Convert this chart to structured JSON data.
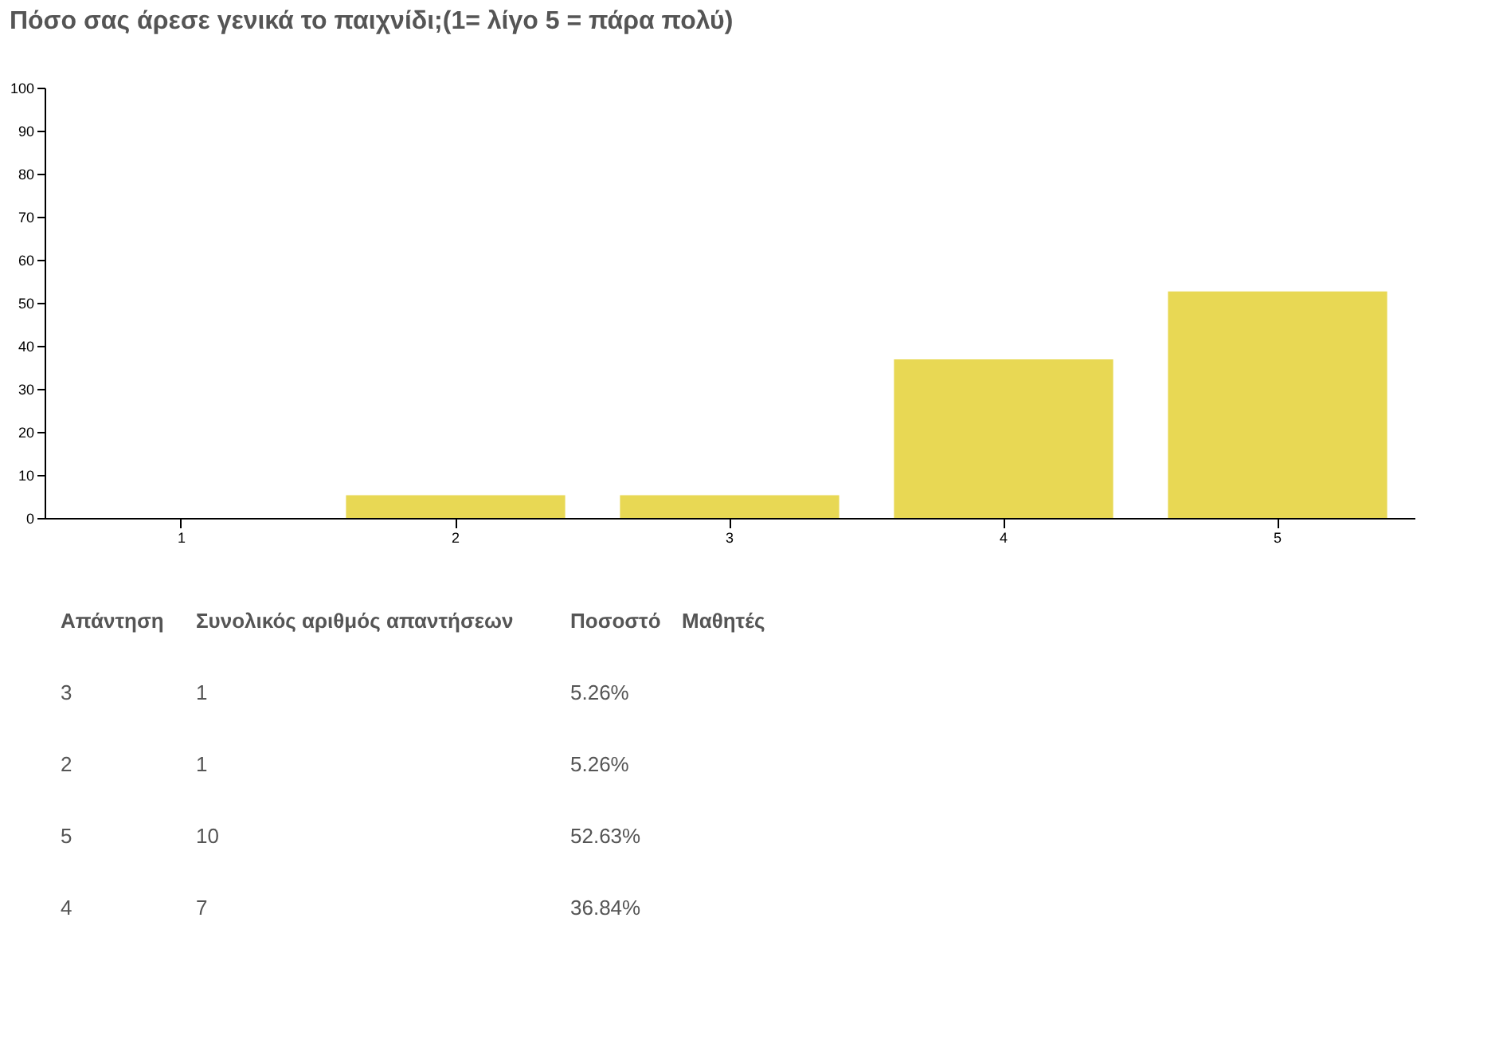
{
  "chart_data": [
    {
      "type": "bar",
      "title": "Πόσο σας άρεσε γενικά το παιχνίδι;(1= λίγο 5 = πάρα πολύ)",
      "categories": [
        "1",
        "2",
        "3",
        "4",
        "5"
      ],
      "values": [
        0,
        5.26,
        5.26,
        36.84,
        52.63
      ],
      "color": "#e8d854",
      "ylim": [
        0,
        100
      ],
      "yticks": [
        0,
        10,
        20,
        30,
        40,
        50,
        60,
        70,
        80,
        90,
        100
      ]
    },
    {
      "type": "other",
      "annotations": [
        "Απάντηση",
        "Συνολικός αριθμός απαντήσεων",
        "Ποσοστό",
        "Μαθητές",
        "3",
        "1",
        "5.26%",
        "2",
        "1",
        "5.26%",
        "5",
        "10",
        "52.63%",
        "4",
        "7",
        "36.84%"
      ]
    }
  ]
}
